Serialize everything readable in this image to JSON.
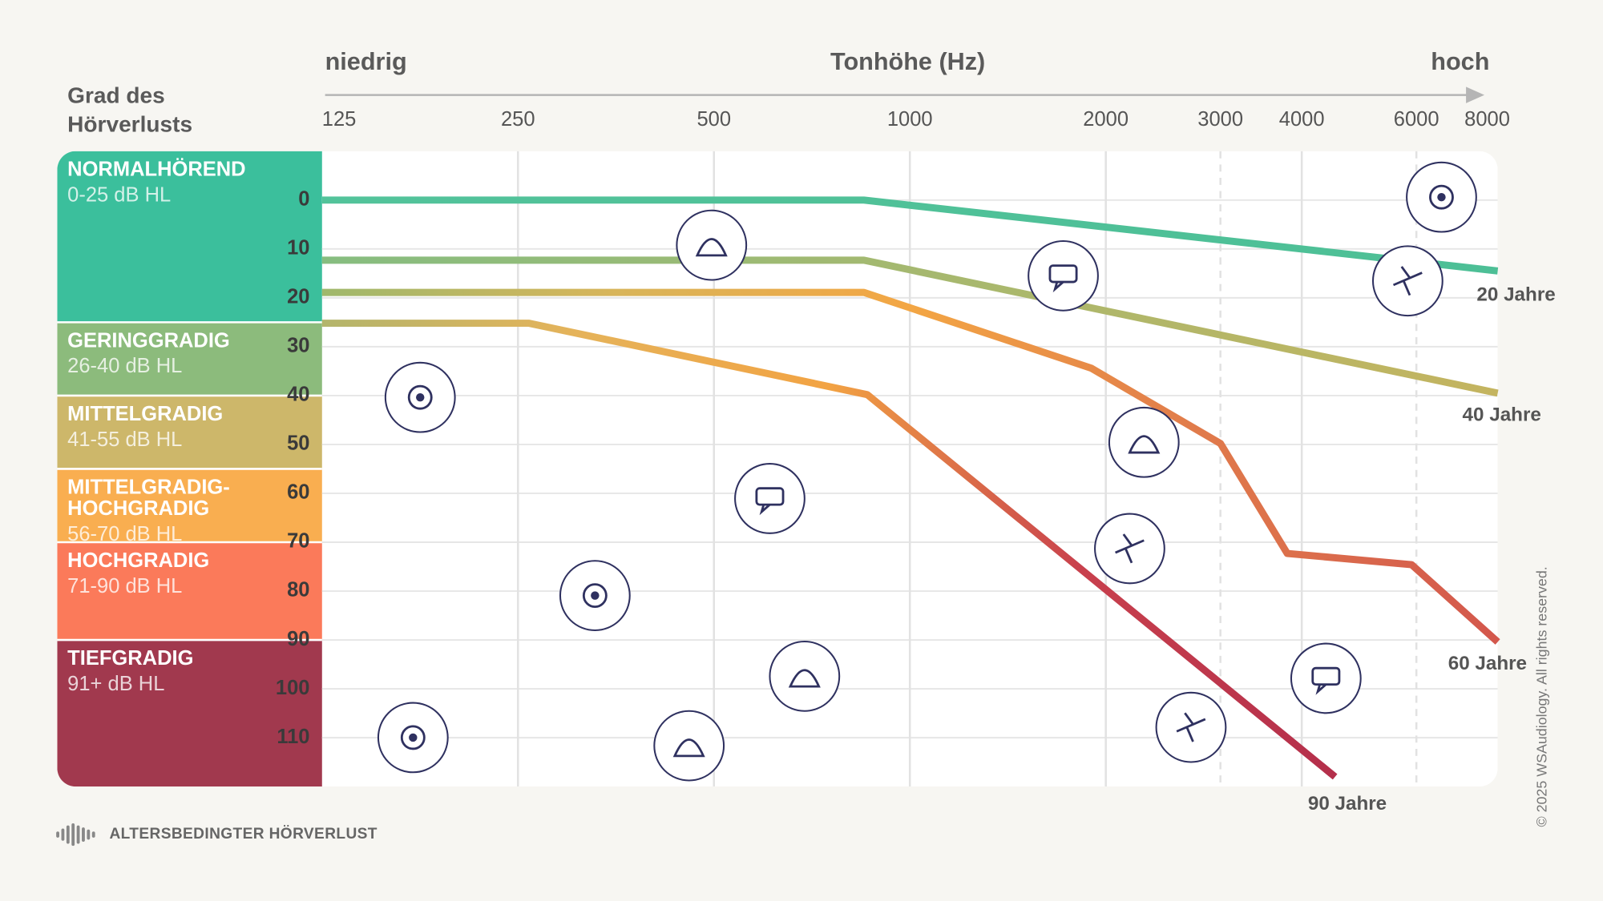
{
  "chart_data": {
    "type": "line",
    "title_left": "niedrig",
    "title": "Tonhöhe (Hz)",
    "title_right": "hoch",
    "y_title": [
      "Grad des",
      "Hörverlusts"
    ],
    "footer": "ALTERSBEDINGTER HÖRVERLUST",
    "copyright": "© 2025 WSAudiology. All rights reserved.",
    "x_log": true,
    "y_inverted": true,
    "grid": true,
    "xlim": [
      125,
      8000
    ],
    "xticks": [
      125,
      250,
      500,
      1000,
      2000,
      3000,
      4000,
      6000,
      8000
    ],
    "xticks_dashed": [
      false,
      false,
      false,
      false,
      false,
      true,
      false,
      true,
      false
    ],
    "ylim": [
      -10,
      120
    ],
    "yticks": [
      0,
      10,
      20,
      30,
      40,
      50,
      60,
      70,
      80,
      90,
      100,
      110
    ],
    "bands": [
      {
        "name": "NORMALHÖREND",
        "range_label": "0-25 dB HL",
        "max": 25,
        "color": "#3bbf9c"
      },
      {
        "name": "GERINGGRADIG",
        "range_label": "26-40 dB HL",
        "max": 40,
        "color": "#8cbb7c"
      },
      {
        "name": "MITTELGRADIG",
        "range_label": "41-55 dB HL",
        "max": 55,
        "color": "#cdb76a"
      },
      {
        "name": [
          "MITTELGRADIG-",
          "HOCHGRADIG"
        ],
        "range_label": "56-70 dB HL",
        "max": 70,
        "color": "#f9ae50"
      },
      {
        "name": "HOCHGRADIG",
        "range_label": "71-90 dB HL",
        "max": 90,
        "color": "#fb7a5a"
      },
      {
        "name": "TIEFGRADIG",
        "range_label": "91+ dB HL",
        "color": "#a1394e"
      }
    ],
    "series": [
      {
        "name": "20 Jahre",
        "colors": [
          "#52c39a",
          "#4dbf96"
        ],
        "x": [
          125,
          850,
          8000
        ],
        "values": [
          0,
          0,
          14.5
        ]
      },
      {
        "name": "40 Jahre",
        "colors": [
          "#86bd80",
          "#c4b45f"
        ],
        "x": [
          125,
          850,
          8000
        ],
        "values": [
          12.3,
          12.3,
          39.5
        ]
      },
      {
        "name": "60 Jahre",
        "colors": [
          "#9fb86c",
          "#d8b55a",
          "#f3a644",
          "#e07a4b",
          "#d3574c"
        ],
        "x": [
          125,
          850,
          1900,
          3000,
          3800,
          5900,
          8000
        ],
        "values": [
          18.9,
          18.9,
          34.4,
          49.8,
          72.3,
          74.6,
          90.4
        ]
      },
      {
        "name": "90 Jahre",
        "colors": [
          "#b3b56c",
          "#e5b35a",
          "#f2a343",
          "#c8404d",
          "#b42f4b"
        ],
        "x": [
          125,
          260,
          860,
          4500
        ],
        "values": [
          25.2,
          25.2,
          39.8,
          118
        ]
      }
    ]
  }
}
